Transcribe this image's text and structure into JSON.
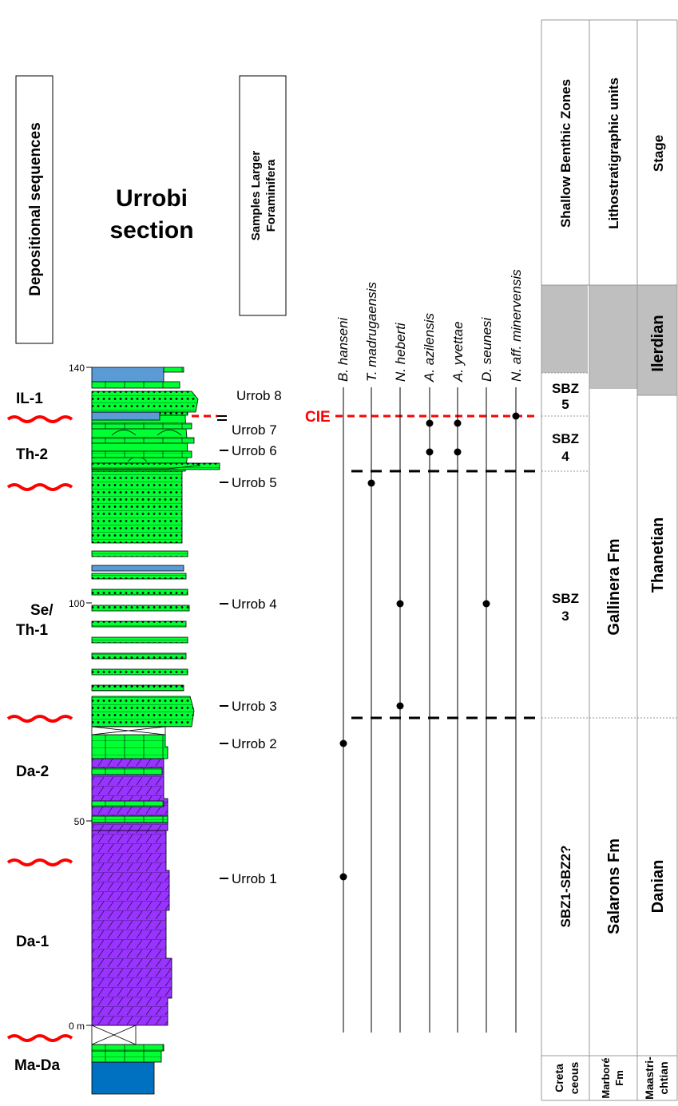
{
  "title": "Urrobi section",
  "header_boxes": {
    "depositional_sequences": "Depositional sequences",
    "samples": [
      "Samples Larger",
      "Foraminifera"
    ]
  },
  "scale": {
    "ticks": [
      {
        "label": "0 m",
        "value": 0
      },
      {
        "label": "50",
        "value": 50
      },
      {
        "label": "100",
        "value": 100
      },
      {
        "label": "140",
        "value": 140
      }
    ]
  },
  "sequences": [
    {
      "label": [
        "IL-1"
      ]
    },
    {
      "label": [
        "Th-2"
      ]
    },
    {
      "label": [
        "Se/",
        "Th-1"
      ]
    },
    {
      "label": [
        "Da-2"
      ]
    },
    {
      "label": [
        "Da-1"
      ]
    },
    {
      "label": [
        "Ma-Da"
      ]
    }
  ],
  "samples": [
    {
      "label": "Urrob 8"
    },
    {
      "label": "Urrob 7"
    },
    {
      "label": "Urrob 6"
    },
    {
      "label": "Urrob 5"
    },
    {
      "label": "Urrob 4"
    },
    {
      "label": "Urrob 3"
    },
    {
      "label": "Urrob 2"
    },
    {
      "label": "Urrob 1"
    }
  ],
  "cie_label": "CIE",
  "taxa": [
    {
      "name": "B. hanseni"
    },
    {
      "name": "T. madrugaensis"
    },
    {
      "name": "N. heberti"
    },
    {
      "name": "A. azilensis"
    },
    {
      "name": "A. yvettae"
    },
    {
      "name": "D. seunesi"
    },
    {
      "name": "N. aff. minervensis"
    }
  ],
  "right_columns": {
    "headers": [
      "Shallow Benthic Zones",
      "Lithostratigraphic units",
      "Stage"
    ],
    "sbz": [
      {
        "label": [
          "SBZ",
          "5"
        ]
      },
      {
        "label": [
          "SBZ",
          "4"
        ]
      },
      {
        "label": [
          "SBZ",
          "3"
        ]
      },
      {
        "label": [
          "SBZ1-SBZ2?"
        ]
      },
      {
        "label": [
          "Creta",
          "ceous"
        ]
      }
    ],
    "litho": [
      {
        "label": "Gallinera Fm"
      },
      {
        "label": "Salarons Fm"
      },
      {
        "label": [
          "Marboré",
          "Fm"
        ]
      }
    ],
    "stage": [
      {
        "label": "Ilerdian"
      },
      {
        "label": "Thanetian"
      },
      {
        "label": "Danian"
      },
      {
        "label": [
          "Maastri-",
          "chtian"
        ]
      }
    ]
  },
  "colors": {
    "limestone_green": "#00ff33",
    "dolomite_purple": "#9933ff",
    "marl_blue": "#5b9bd5",
    "base_blue": "#0070c0",
    "unconformity_red": "#ff0000",
    "cie_red": "#ff0000",
    "hiatus_gray": "#bfbfbf"
  }
}
